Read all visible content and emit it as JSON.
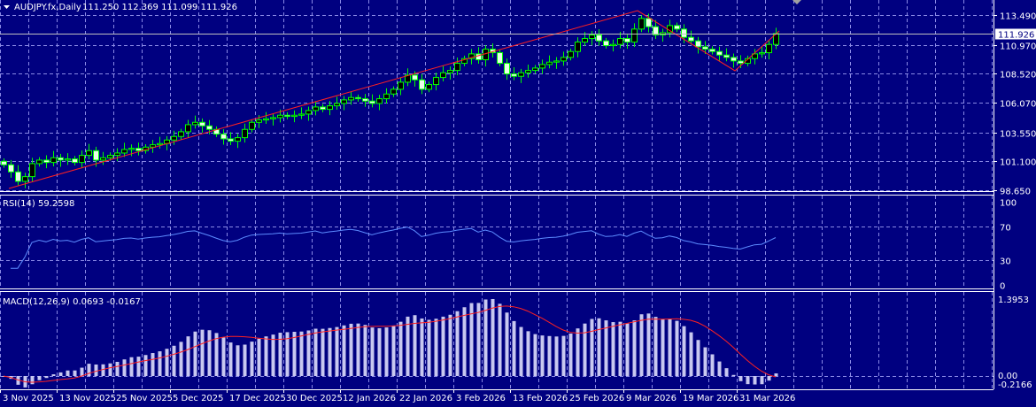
{
  "header": {
    "symbol_label": "AUDJPY.fx,Daily",
    "ohlc": "111.250 112.369 111.099 111.926"
  },
  "colors": {
    "background": "#000080",
    "grid": "#8a8ae6",
    "candle_outline": "#00ff00",
    "bear_fill": "#e8ffe8",
    "bull_fill": "#000000",
    "trendline": "#ff2020",
    "rsi_line": "#5c8cff",
    "macd_hist": "#c8c8f0",
    "signal_line": "#ff2020"
  },
  "chart_data": [
    {
      "type": "candlestick",
      "title": "AUDJPY.fx,Daily",
      "current_price": "111.926",
      "y_ticks": [
        "113.490",
        "110.970",
        "108.520",
        "106.070",
        "103.550",
        "101.100",
        "98.650"
      ],
      "ylim": [
        98.65,
        113.49
      ],
      "x_ticks": [
        "3 Nov 2025",
        "13 Nov 2025",
        "25 Nov 2025",
        "5 Dec 2025",
        "17 Dec 2025",
        "30 Dec 2025",
        "12 Jan 2026",
        "22 Jan 2026",
        "3 Feb 2026",
        "13 Feb 2026",
        "25 Feb 2026",
        "9 Mar 2026",
        "19 Mar 2026",
        "31 Mar 2026"
      ],
      "closes": [
        100.8,
        100.2,
        99.4,
        99.8,
        100.9,
        101.2,
        101.0,
        101.4,
        101.2,
        101.3,
        101.0,
        101.6,
        102.0,
        101.2,
        101.4,
        101.6,
        101.8,
        102.1,
        102.2,
        102.0,
        102.3,
        102.5,
        102.6,
        102.9,
        103.2,
        103.6,
        104.2,
        104.4,
        104.1,
        103.8,
        103.4,
        103.0,
        102.8,
        103.1,
        103.8,
        104.4,
        104.6,
        104.7,
        104.8,
        105.0,
        104.9,
        105.0,
        105.1,
        105.4,
        105.7,
        105.5,
        105.8,
        106.0,
        106.3,
        106.5,
        106.4,
        106.2,
        106.0,
        106.4,
        106.8,
        107.2,
        107.8,
        108.4,
        108.0,
        107.2,
        107.6,
        108.2,
        108.6,
        108.8,
        109.4,
        109.8,
        110.2,
        109.7,
        110.6,
        110.3,
        109.4,
        108.5,
        108.3,
        108.6,
        108.8,
        109.0,
        109.3,
        109.5,
        109.6,
        109.9,
        110.4,
        111.2,
        111.5,
        111.8,
        111.3,
        110.9,
        111.0,
        111.5,
        111.2,
        112.3,
        113.2,
        112.5,
        111.8,
        112.0,
        112.6,
        112.3,
        111.6,
        111.3,
        110.8,
        110.6,
        110.4,
        110.1,
        109.9,
        109.6,
        109.4,
        109.8,
        110.2,
        110.3,
        111.0,
        111.926
      ],
      "trendline": [
        [
          0.75,
          98.8
        ],
        [
          89.5,
          113.86
        ],
        [
          103.25,
          108.77
        ],
        [
          109.5,
          112.14
        ]
      ]
    },
    {
      "type": "line",
      "title": "RSI(14) 59.2598",
      "y_ticks": [
        "100",
        "70",
        "30",
        "0"
      ],
      "ylim": [
        0,
        100
      ]
    },
    {
      "type": "bar",
      "title": "MACD(12,26,9) 0.0693 -0.0167",
      "y_ticks": [
        "1.3953",
        "0.00",
        "-0.2166"
      ],
      "ylim": [
        -0.2166,
        1.3953
      ]
    }
  ]
}
